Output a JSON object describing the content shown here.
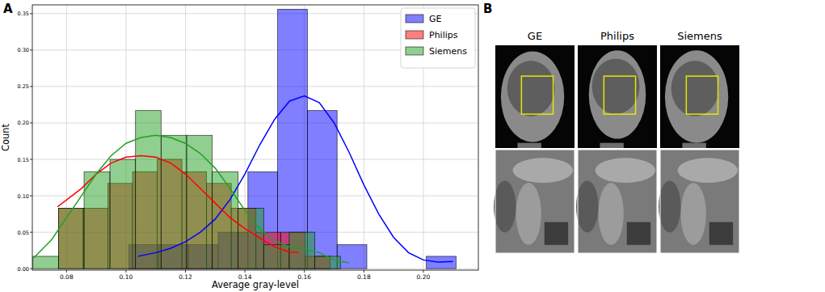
{
  "panel_labels": [
    "A",
    "B"
  ],
  "chart_data": {
    "type": "histogram",
    "x_label": "Average gray-level",
    "y_label": "Count",
    "xlim": [
      0.0685,
      0.2185
    ],
    "ylim": [
      -0.002,
      0.362
    ],
    "xticks": [
      0.08,
      {
        "value": 0.1,
        "label": "0.10"
      },
      0.12,
      0.14,
      0.16,
      0.18,
      {
        "value": 0.2,
        "label": "0.20"
      }
    ],
    "yticks": [
      {
        "value": 0,
        "label": "0.00"
      },
      0.05,
      {
        "value": 0.1,
        "label": "0.10"
      },
      0.15,
      {
        "value": 0.2,
        "label": "0.20"
      },
      0.25,
      {
        "value": 0.3,
        "label": "0.30"
      },
      0.35
    ],
    "grid": true,
    "legend": "upper right",
    "series": [
      {
        "name": "GE",
        "color": "#0000ff",
        "bins": [
          0.101,
          0.111,
          0.121,
          0.131,
          0.141,
          0.151,
          0.161,
          0.171,
          0.181,
          0.191,
          0.201,
          0.211
        ],
        "values": [
          0.033,
          0.033,
          0.033,
          0.05,
          0.133,
          0.356,
          0.217,
          0.033,
          0,
          0,
          0.017
        ],
        "curve_x": [
          0.104,
          0.11,
          0.115,
          0.12,
          0.125,
          0.13,
          0.135,
          0.14,
          0.145,
          0.15,
          0.155,
          0.16,
          0.165,
          0.17,
          0.175,
          0.18,
          0.185,
          0.19,
          0.195,
          0.2,
          0.205,
          0.21
        ],
        "curve_y": [
          0.017,
          0.022,
          0.028,
          0.037,
          0.05,
          0.068,
          0.095,
          0.13,
          0.17,
          0.205,
          0.23,
          0.237,
          0.228,
          0.2,
          0.16,
          0.115,
          0.075,
          0.043,
          0.022,
          0.012,
          0.009,
          0.01
        ]
      },
      {
        "name": "Philips",
        "color": "#ff0000",
        "bins": [
          0.0773,
          0.0856,
          0.0939,
          0.1022,
          0.1105,
          0.1188,
          0.1271,
          0.1354,
          0.1437,
          0.152,
          0.1603,
          0.1686
        ],
        "values": [
          0.083,
          0.083,
          0.117,
          0.133,
          0.15,
          0.133,
          0.117,
          0.083,
          0.05,
          0.05,
          0.017
        ],
        "curve_x": [
          0.077,
          0.085,
          0.09,
          0.095,
          0.1,
          0.105,
          0.11,
          0.115,
          0.12,
          0.125,
          0.13,
          0.135,
          0.14,
          0.145,
          0.15,
          0.155,
          0.158
        ],
        "curve_y": [
          0.085,
          0.11,
          0.13,
          0.145,
          0.153,
          0.155,
          0.153,
          0.145,
          0.13,
          0.11,
          0.09,
          0.07,
          0.055,
          0.042,
          0.03,
          0.023,
          0.022
        ]
      },
      {
        "name": "Siemens",
        "color": "#22a022",
        "bins": [
          0.0687,
          0.0773,
          0.0859,
          0.0946,
          0.1032,
          0.1118,
          0.1204,
          0.129,
          0.1377,
          0.1463,
          0.1549,
          0.1635,
          0.1721
        ],
        "values": [
          0.017,
          0.083,
          0.133,
          0.15,
          0.217,
          0.183,
          0.183,
          0.133,
          0.083,
          0.033,
          0.05,
          0.017
        ],
        "curve_x": [
          0.069,
          0.075,
          0.08,
          0.085,
          0.09,
          0.095,
          0.1,
          0.105,
          0.11,
          0.115,
          0.12,
          0.125,
          0.13,
          0.135,
          0.14,
          0.145,
          0.15,
          0.155,
          0.16,
          0.165,
          0.17,
          0.175
        ],
        "curve_y": [
          0.015,
          0.04,
          0.07,
          0.1,
          0.13,
          0.155,
          0.172,
          0.18,
          0.183,
          0.18,
          0.172,
          0.158,
          0.138,
          0.11,
          0.08,
          0.055,
          0.038,
          0.03,
          0.027,
          0.022,
          0.012,
          0.008
        ]
      }
    ]
  },
  "image_panel": {
    "titles": [
      "GE",
      "Philips",
      "Siemens"
    ]
  }
}
